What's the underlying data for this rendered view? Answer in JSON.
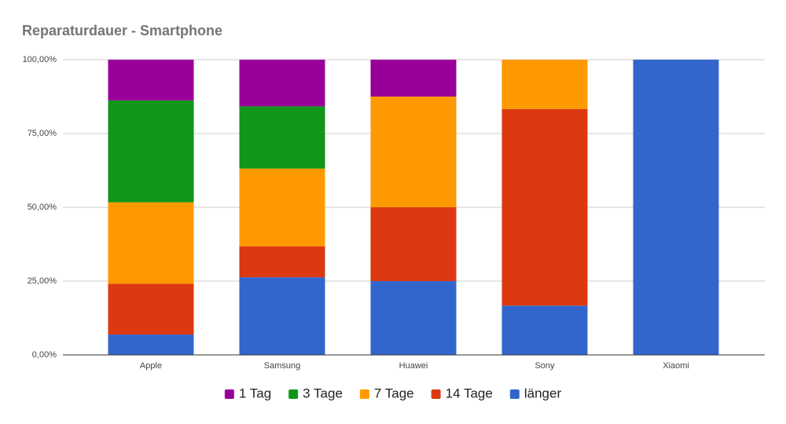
{
  "chart_data": {
    "type": "stacked-bar",
    "title": "Reparaturdauer - Smartphone",
    "categories": [
      "Apple",
      "Samsung",
      "Huawei",
      "Sony",
      "Xiaomi"
    ],
    "series": [
      {
        "name": "1 Tag",
        "color": "#990099",
        "values": [
          13.8,
          15.8,
          12.5,
          0,
          0
        ]
      },
      {
        "name": "3 Tage",
        "color": "#109618",
        "values": [
          34.5,
          21.1,
          0,
          0,
          0
        ]
      },
      {
        "name": "7 Tage",
        "color": "#ff9900",
        "values": [
          27.6,
          26.3,
          37.5,
          16.7,
          0
        ]
      },
      {
        "name": "14 Tage",
        "color": "#dc3912",
        "values": [
          17.2,
          10.5,
          25,
          66.6,
          0
        ]
      },
      {
        "name": "länger",
        "color": "#3366cc",
        "values": [
          6.9,
          26.3,
          25,
          16.7,
          100
        ]
      }
    ],
    "ylim": [
      0,
      100
    ],
    "yticks": [
      {
        "value": 0,
        "label": "0,00%"
      },
      {
        "value": 25,
        "label": "25,00%"
      },
      {
        "value": 50,
        "label": "50,00%"
      },
      {
        "value": 75,
        "label": "75,00%"
      },
      {
        "value": 100,
        "label": "100,00%"
      }
    ],
    "grid": true,
    "legend": "bottom"
  }
}
